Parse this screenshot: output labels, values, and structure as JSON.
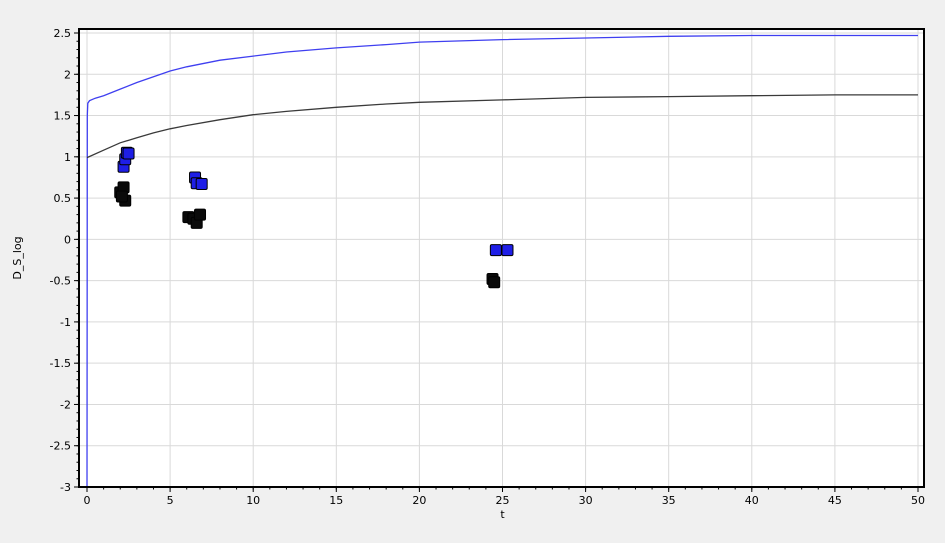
{
  "chart_data": {
    "type": "scatter",
    "title": "",
    "xlabel": "t",
    "ylabel": "D_S_log",
    "xlim": [
      0,
      50
    ],
    "ylim": [
      -3,
      2.5
    ],
    "grid": true,
    "legend": "none",
    "x_ticks": [
      "0",
      "5",
      "10",
      "15",
      "20",
      "25",
      "30",
      "35",
      "40",
      "45",
      "50"
    ],
    "y_ticks": [
      "2.5",
      "2",
      "1.5",
      "1",
      "0.5",
      "0",
      "-0.5",
      "-1",
      "-1.5",
      "-2",
      "-2.5",
      "-3"
    ],
    "series": [
      {
        "kind": "line",
        "color": "#3f3ff0",
        "points": [
          [
            0,
            -3
          ],
          [
            0.02,
            1.5
          ],
          [
            0.05,
            1.65
          ],
          [
            0.15,
            1.68
          ],
          [
            0.5,
            1.71
          ],
          [
            1,
            1.74
          ],
          [
            2,
            1.82
          ],
          [
            3,
            1.9
          ],
          [
            4,
            1.97
          ],
          [
            5,
            2.04
          ],
          [
            6,
            2.09
          ],
          [
            8,
            2.17
          ],
          [
            10,
            2.22
          ],
          [
            12,
            2.27
          ],
          [
            15,
            2.32
          ],
          [
            18,
            2.36
          ],
          [
            20,
            2.39
          ],
          [
            25,
            2.42
          ],
          [
            30,
            2.44
          ],
          [
            35,
            2.46
          ],
          [
            40,
            2.47
          ],
          [
            45,
            2.47
          ],
          [
            50,
            2.47
          ]
        ]
      },
      {
        "kind": "line",
        "color": "#3a3a3a",
        "points": [
          [
            0,
            0.99
          ],
          [
            1,
            1.08
          ],
          [
            2,
            1.17
          ],
          [
            3,
            1.23
          ],
          [
            4,
            1.29
          ],
          [
            5,
            1.34
          ],
          [
            6,
            1.38
          ],
          [
            8,
            1.45
          ],
          [
            10,
            1.51
          ],
          [
            12,
            1.55
          ],
          [
            15,
            1.6
          ],
          [
            18,
            1.64
          ],
          [
            20,
            1.66
          ],
          [
            25,
            1.69
          ],
          [
            30,
            1.72
          ],
          [
            35,
            1.73
          ],
          [
            40,
            1.74
          ],
          [
            45,
            1.75
          ],
          [
            50,
            1.75
          ]
        ]
      },
      {
        "kind": "markers",
        "color": "#1e1ee6",
        "points": [
          [
            2.2,
            0.88
          ],
          [
            2.3,
            0.97
          ],
          [
            2.4,
            1.05
          ],
          [
            2.5,
            1.04
          ],
          [
            6.5,
            0.75
          ],
          [
            6.6,
            0.68
          ],
          [
            6.9,
            0.67
          ],
          [
            24.6,
            -0.13
          ],
          [
            25.3,
            -0.13
          ]
        ]
      },
      {
        "kind": "markers",
        "color": "#0a0a0a",
        "points": [
          [
            2.0,
            0.57
          ],
          [
            2.2,
            0.63
          ],
          [
            2.3,
            0.47
          ],
          [
            2.1,
            0.52
          ],
          [
            6.1,
            0.27
          ],
          [
            6.4,
            0.25
          ],
          [
            6.6,
            0.2
          ],
          [
            6.8,
            0.3
          ],
          [
            24.4,
            -0.48
          ],
          [
            24.5,
            -0.52
          ]
        ]
      }
    ]
  }
}
